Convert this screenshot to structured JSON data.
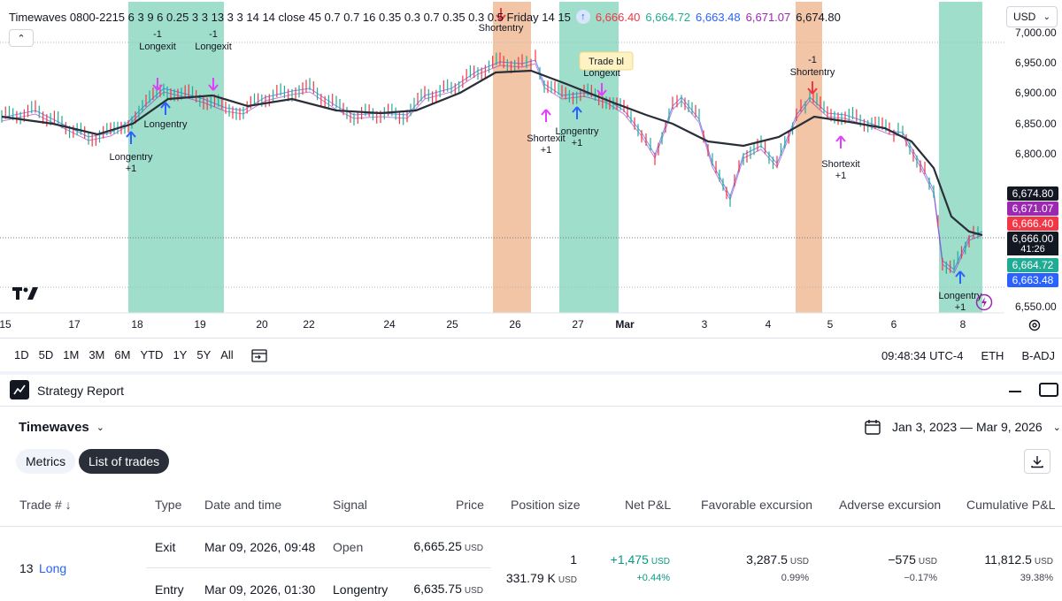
{
  "legend": {
    "title": "Timewaves 0800-2215 6 3 9 6 0.25 3 3 13 3 3 14 14 close 45 0.7 0.7 16 0.35 0.3 0.7 0.35 0.3 0.5 Friday 14 15",
    "values": [
      {
        "text": "6,666.40",
        "color": "#f23645"
      },
      {
        "text": "6,664.72",
        "color": "#22ab94"
      },
      {
        "text": "6,663.48",
        "color": "#2962ff"
      },
      {
        "text": "6,671.07",
        "color": "#9c27b0"
      },
      {
        "text": "6,674.80",
        "color": "#131722"
      }
    ],
    "collapse_icon": "chevron-up-icon"
  },
  "currency": "USD",
  "price_axis": [
    "7,000.00",
    "6,950.00",
    "6,900.00",
    "6,850.00",
    "6,800.00",
    "6,550.00"
  ],
  "price_tags": [
    {
      "text": "6,674.80",
      "bg": "#131722"
    },
    {
      "text": "6,671.07",
      "bg": "#9c27b0"
    },
    {
      "text": "6,666.40",
      "bg": "#f23645"
    },
    {
      "text": "6,666.00",
      "bg": "#131722"
    },
    {
      "text": "6,664.72",
      "bg": "#22ab94"
    },
    {
      "text": "6,663.48",
      "bg": "#2962ff"
    }
  ],
  "countdown": "41:26",
  "time_axis": [
    "15",
    "17",
    "18",
    "19",
    "20",
    "22",
    "24",
    "25",
    "26",
    "27",
    "Mar",
    "3",
    "4",
    "5",
    "6",
    "8"
  ],
  "signals": [
    {
      "text": "Longexit",
      "sub": "-1"
    },
    {
      "text": "Longexit",
      "sub": "-1"
    },
    {
      "text": "Longentry",
      "sub": ""
    },
    {
      "text": "Longentry",
      "sub": "+1"
    },
    {
      "text": "Shortentry",
      "sub": ""
    },
    {
      "text": "Trade bl",
      "sub": ""
    },
    {
      "text": "Longexit",
      "sub": ""
    },
    {
      "text": "Longentry",
      "sub": "+1"
    },
    {
      "text": "Shortexit",
      "sub": "+1"
    },
    {
      "text": "Shortentry",
      "sub": "-1"
    },
    {
      "text": "Shortexit",
      "sub": "+1"
    },
    {
      "text": "Longentry",
      "sub": "+1"
    }
  ],
  "toolbar": {
    "periods": [
      "1D",
      "5D",
      "1M",
      "3M",
      "6M",
      "YTD",
      "1Y",
      "5Y",
      "All"
    ],
    "time": "09:48:34 UTC-4",
    "session": "ETH",
    "adjust": "B-ADJ"
  },
  "report": {
    "title": "Strategy Report",
    "strategy": "Timewaves",
    "date_range": "Jan 3, 2023 — Mar 9, 2026",
    "tabs": [
      "Metrics",
      "List of trades"
    ],
    "columns": [
      "Trade # ↓",
      "Type",
      "Date and time",
      "Signal",
      "Price",
      "Position size",
      "Net P&L",
      "Favorable excursion",
      "Adverse excursion",
      "Cumulative P&L"
    ],
    "trade": {
      "number": "13",
      "side": "Long",
      "exit": {
        "type": "Exit",
        "datetime": "Mar 09, 2026, 09:48",
        "signal": "Open",
        "price": "6,665.25"
      },
      "entry": {
        "type": "Entry",
        "datetime": "Mar 09, 2026, 01:30",
        "signal": "Longentry",
        "price": "6,635.75"
      },
      "position_size": "1",
      "position_value": "331.79 K",
      "net_pl": "+1,475",
      "net_pl_pct": "+0.44%",
      "favorable": "3,287.5",
      "favorable_pct": "0.99%",
      "adverse": "−575",
      "adverse_pct": "−0.17%",
      "cumulative": "11,812.5",
      "cumulative_pct": "39.38%"
    },
    "currency": "USD"
  },
  "colors": {
    "long_zone": "#99dcc8",
    "short_zone": "#f0c2a0",
    "long_marker": "#2962ff",
    "short_marker": "#f23645",
    "exit_marker": "#e040fb",
    "positive": "#089981",
    "text_link": "#2962ff"
  }
}
